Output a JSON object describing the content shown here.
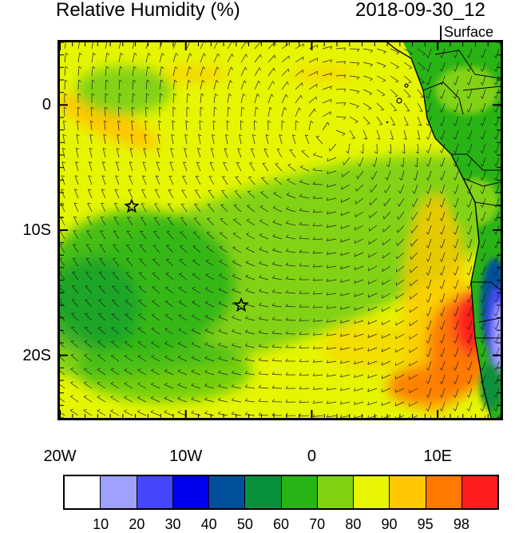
{
  "header": {
    "title": "Relative Humidity (%)",
    "datetime": "2018-09-30_12",
    "level": "Surface"
  },
  "map": {
    "extent_lon": [
      -20,
      15
    ],
    "extent_lat": [
      -25,
      5
    ],
    "lat_labels": [
      {
        "lat": 0,
        "text": "0"
      },
      {
        "lat": -10,
        "text": "10S"
      },
      {
        "lat": -20,
        "text": "20S"
      }
    ],
    "lon_labels": [
      {
        "lon": -20,
        "text": "20W"
      },
      {
        "lon": -10,
        "text": "10W"
      },
      {
        "lon": 0,
        "text": "0"
      },
      {
        "lon": 10,
        "text": "10E"
      }
    ],
    "markers": [
      {
        "name": "star-marker-1",
        "lon": -14.3,
        "lat": -8.1
      },
      {
        "name": "star-marker-2",
        "lon": -5.6,
        "lat": -16.0
      }
    ]
  },
  "colorbar": {
    "colors": [
      "#ffffff",
      "#a0a0ff",
      "#4646ff",
      "#0000f0",
      "#00509b",
      "#08913c",
      "#28b414",
      "#82d214",
      "#e6f500",
      "#ffc800",
      "#ff7800",
      "#ff1e1e"
    ],
    "labels": [
      "10",
      "20",
      "30",
      "40",
      "50",
      "60",
      "70",
      "80",
      "90",
      "95",
      "98"
    ]
  }
}
